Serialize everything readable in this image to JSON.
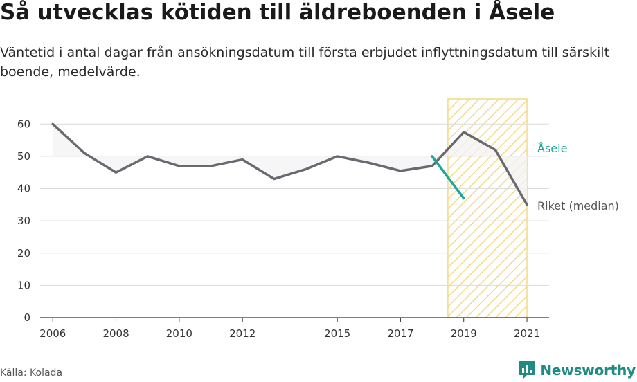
{
  "title": "Så utvecklas kötiden till äldreboenden i Åsele",
  "subtitle": "Väntetid i antal dagar från ansökningsdatum till första erbjudet inflyttningsdatum till särskilt boende, medelvärde.",
  "source": "Källa: Kolada",
  "brand": "Newsworthy",
  "chart_data": {
    "type": "line",
    "ylim": [
      0,
      65
    ],
    "yticks": [
      0,
      10,
      20,
      30,
      40,
      50,
      60
    ],
    "xlim": [
      2005.6,
      2021.7
    ],
    "xticks": [
      2006,
      2008,
      2010,
      2012,
      2015,
      2017,
      2019,
      2021
    ],
    "xtick_labels": [
      "2006",
      "2008",
      "2010",
      "2012",
      "2015",
      "2017",
      "2019",
      "2021"
    ],
    "grid": true,
    "reference_line": 50,
    "highlight_range": [
      2018.5,
      2021
    ],
    "series": [
      {
        "name": "Riket (median)",
        "color": "#6b6970",
        "x": [
          2006,
          2007,
          2008,
          2009,
          2010,
          2011,
          2012,
          2013,
          2014,
          2015,
          2016,
          2017,
          2018,
          2019,
          2020,
          2021
        ],
        "values": [
          60,
          51,
          45,
          50,
          47,
          47,
          49,
          43,
          46,
          50,
          48,
          45.5,
          47,
          57.5,
          52,
          35
        ]
      },
      {
        "name": "Åsele",
        "color": "#1aa79b",
        "x": [
          2018,
          2019
        ],
        "values": [
          50,
          37
        ]
      }
    ]
  }
}
